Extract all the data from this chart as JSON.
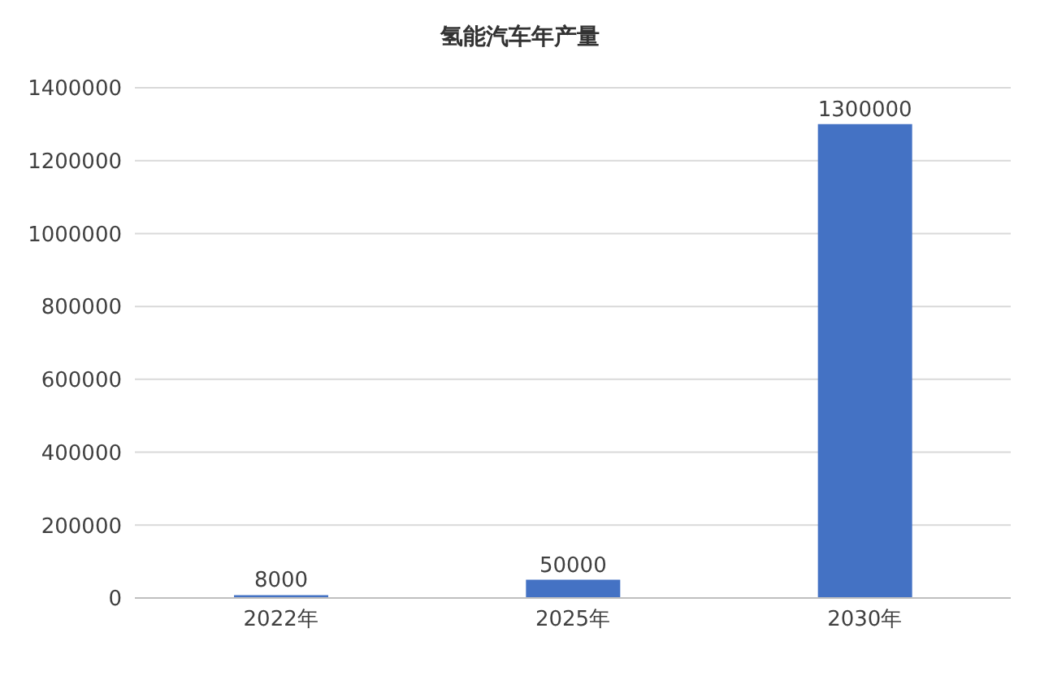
{
  "chart_data": {
    "type": "bar",
    "title": "氢能汽车年产量",
    "categories": [
      "2022年",
      "2025年",
      "2030年"
    ],
    "values": [
      8000,
      50000,
      1300000
    ],
    "color": "#4472c4",
    "ylim": [
      0,
      1400000
    ],
    "yticks": [
      0,
      200000,
      400000,
      600000,
      800000,
      1000000,
      1200000,
      1400000
    ],
    "grid": "y",
    "data_labels": true
  }
}
